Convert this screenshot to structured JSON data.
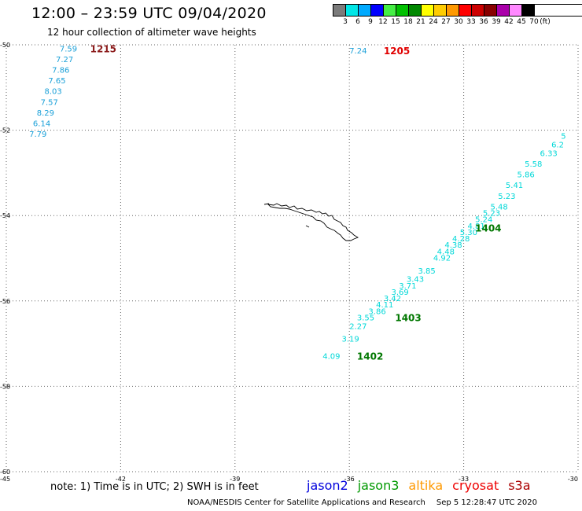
{
  "title": "12:00 – 23:59 UTC 09/04/2020",
  "subtitle": "12 hour collection of altimeter wave heights",
  "legend": {
    "unit": "(ft)",
    "labels": [
      "3",
      "6",
      "9",
      "12",
      "15",
      "18",
      "21",
      "24",
      "27",
      "30",
      "33",
      "36",
      "39",
      "42",
      "45",
      "70"
    ],
    "colors": [
      "#7b7b7b",
      "#00e6e6",
      "#00aaff",
      "#0000ff",
      "#44ee44",
      "#00c000",
      "#008800",
      "#ffff00",
      "#ffcc00",
      "#ff9900",
      "#ff0000",
      "#cc0000",
      "#880000",
      "#aa00aa",
      "#ff88ff",
      "#000000"
    ]
  },
  "map": {
    "lon_range": [
      -45,
      -30
    ],
    "lat_range": [
      -60,
      -50
    ],
    "lon_ticks": [
      "-45",
      "-42",
      "-39",
      "-36",
      "-33",
      "-30"
    ],
    "lat_ticks": [
      "-50",
      "-52",
      "-54",
      "-56",
      "-58",
      "-60"
    ],
    "grid": "dotted",
    "coastline": "South Georgia"
  },
  "tracks": [
    {
      "satellite": "cryosat",
      "color": "#8b1a1a",
      "text_color": "#1aa0d8",
      "time_label": "1215",
      "time_at": {
        "lon": -42.8,
        "lat": -50.1
      },
      "points": [
        {
          "lon": -43.6,
          "lat": -50.1,
          "v": "7.59"
        },
        {
          "lon": -43.7,
          "lat": -50.35,
          "v": "7.27"
        },
        {
          "lon": -43.8,
          "lat": -50.6,
          "v": "7.86"
        },
        {
          "lon": -43.9,
          "lat": -50.85,
          "v": "7.65"
        },
        {
          "lon": -44.0,
          "lat": -51.1,
          "v": "8.03"
        },
        {
          "lon": -44.1,
          "lat": -51.35,
          "v": "7.57"
        },
        {
          "lon": -44.2,
          "lat": -51.6,
          "v": "8.29"
        },
        {
          "lon": -44.3,
          "lat": -51.85,
          "v": "6.14"
        },
        {
          "lon": -44.4,
          "lat": -52.1,
          "v": "7.79"
        }
      ]
    },
    {
      "satellite": "cryosat",
      "color": "#e00000",
      "text_color": "#1aa0d8",
      "time_label": "1205",
      "time_at": {
        "lon": -35.1,
        "lat": -50.15
      },
      "points": [
        {
          "lon": -36.0,
          "lat": -50.15,
          "v": "7.24"
        }
      ]
    },
    {
      "satellite": "jason3",
      "color": "#007700",
      "text_color": "#00d8d8",
      "time_labels": [
        {
          "label": "1402",
          "lon": -35.8,
          "lat": -57.3
        },
        {
          "label": "1403",
          "lon": -34.8,
          "lat": -56.4
        },
        {
          "label": "1404",
          "lon": -32.7,
          "lat": -54.3
        }
      ],
      "points": [
        {
          "lon": -36.7,
          "lat": -57.3,
          "v": "4.09"
        },
        {
          "lon": -36.2,
          "lat": -56.9,
          "v": "3.19"
        },
        {
          "lon": -36.0,
          "lat": -56.6,
          "v": "2.27"
        },
        {
          "lon": -35.8,
          "lat": -56.4,
          "v": "3.55"
        },
        {
          "lon": -35.5,
          "lat": -56.25,
          "v": "3.86"
        },
        {
          "lon": -35.3,
          "lat": -56.1,
          "v": "4.11"
        },
        {
          "lon": -35.1,
          "lat": -55.95,
          "v": "3.42"
        },
        {
          "lon": -34.9,
          "lat": -55.8,
          "v": "3.69"
        },
        {
          "lon": -34.7,
          "lat": -55.65,
          "v": "3.71"
        },
        {
          "lon": -34.5,
          "lat": -55.5,
          "v": "3.43"
        },
        {
          "lon": -34.2,
          "lat": -55.3,
          "v": "3.85"
        },
        {
          "lon": -33.8,
          "lat": -55.0,
          "v": "4.92"
        },
        {
          "lon": -33.7,
          "lat": -54.85,
          "v": "4.48"
        },
        {
          "lon": -33.5,
          "lat": -54.7,
          "v": "4.38"
        },
        {
          "lon": -33.3,
          "lat": -54.55,
          "v": "4.28"
        },
        {
          "lon": -33.1,
          "lat": -54.4,
          "v": "5.30"
        },
        {
          "lon": -32.9,
          "lat": -54.25,
          "v": "4.81"
        },
        {
          "lon": -32.7,
          "lat": -54.1,
          "v": "5.24"
        },
        {
          "lon": -32.5,
          "lat": -53.95,
          "v": "5.23"
        },
        {
          "lon": -32.3,
          "lat": -53.8,
          "v": "5.48"
        },
        {
          "lon": -32.1,
          "lat": -53.55,
          "v": "5.23"
        },
        {
          "lon": -31.9,
          "lat": -53.3,
          "v": "5.41"
        },
        {
          "lon": -31.6,
          "lat": -53.05,
          "v": "5.86"
        },
        {
          "lon": -31.4,
          "lat": -52.8,
          "v": "5.58"
        },
        {
          "lon": -31.0,
          "lat": -52.55,
          "v": "6.33"
        },
        {
          "lon": -30.7,
          "lat": -52.35,
          "v": "6.2"
        },
        {
          "lon": -30.45,
          "lat": -52.15,
          "v": "5"
        }
      ]
    }
  ],
  "footer_note": "note: 1) Time is in UTC; 2) SWH is in feet",
  "missions": [
    {
      "name": "jason2",
      "color": "#0000dd"
    },
    {
      "name": "jason3",
      "color": "#009900"
    },
    {
      "name": "altika",
      "color": "#ff9900"
    },
    {
      "name": "cryosat",
      "color": "#ee0000"
    },
    {
      "name": "s3a",
      "color": "#aa0000"
    }
  ],
  "credit": "NOAA/NESDIS Center for Satellite Applications and Research",
  "credit_time": "Sep  5 12:28:47 UTC 2020"
}
